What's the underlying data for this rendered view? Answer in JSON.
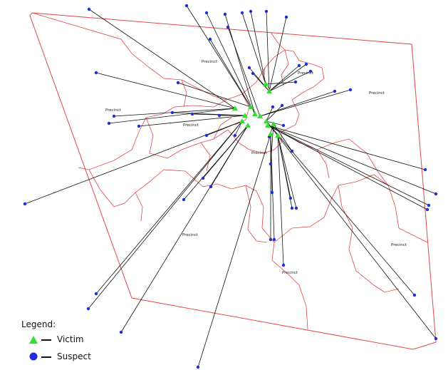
{
  "legend": {
    "title": "Legend:",
    "items": [
      {
        "label": "Victim",
        "symbol": "triangle",
        "color": "#33dd33"
      },
      {
        "label": "Suspect",
        "symbol": "circle",
        "color": "#1f2fd6"
      }
    ]
  },
  "map": {
    "boundary_color": "#e04848",
    "link_color": "#111111",
    "precinct_labels": [
      "Precinct",
      "Precinct",
      "Precinct",
      "Precinct",
      "Precinct",
      "Precinct",
      "Precinct",
      "Precinct",
      "Precinct"
    ]
  }
}
